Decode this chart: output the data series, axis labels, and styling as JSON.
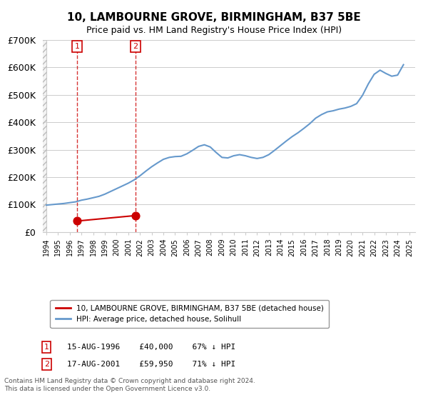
{
  "title": "10, LAMBOURNE GROVE, BIRMINGHAM, B37 5BE",
  "subtitle": "Price paid vs. HM Land Registry's House Price Index (HPI)",
  "legend_label_red": "10, LAMBOURNE GROVE, BIRMINGHAM, B37 5BE (detached house)",
  "legend_label_blue": "HPI: Average price, detached house, Solihull",
  "sale_dates": [
    "1996-08-15",
    "2001-08-17"
  ],
  "sale_years": [
    1996.625,
    2001.625
  ],
  "sale_prices": [
    40000,
    59950
  ],
  "sale_labels": [
    "1",
    "2"
  ],
  "sale_label_info": [
    "15-AUG-1996    £40,000    67% ↓ HPI",
    "17-AUG-2001    £59,950    71% ↓ HPI"
  ],
  "hpi_years": [
    1994.0,
    1994.5,
    1995.0,
    1995.5,
    1996.0,
    1996.5,
    1997.0,
    1997.5,
    1998.0,
    1998.5,
    1999.0,
    1999.5,
    2000.0,
    2000.5,
    2001.0,
    2001.5,
    2002.0,
    2002.5,
    2003.0,
    2003.5,
    2004.0,
    2004.5,
    2005.0,
    2005.5,
    2006.0,
    2006.5,
    2007.0,
    2007.5,
    2008.0,
    2008.5,
    2009.0,
    2009.5,
    2010.0,
    2010.5,
    2011.0,
    2011.5,
    2012.0,
    2012.5,
    2013.0,
    2013.5,
    2014.0,
    2014.5,
    2015.0,
    2015.5,
    2016.0,
    2016.5,
    2017.0,
    2017.5,
    2018.0,
    2018.5,
    2019.0,
    2019.5,
    2020.0,
    2020.5,
    2021.0,
    2021.5,
    2022.0,
    2022.5,
    2023.0,
    2023.5,
    2024.0,
    2024.5
  ],
  "hpi_values": [
    98000,
    100000,
    102000,
    104000,
    107000,
    110000,
    116000,
    120000,
    125000,
    130000,
    138000,
    148000,
    158000,
    168000,
    178000,
    190000,
    205000,
    222000,
    238000,
    252000,
    265000,
    272000,
    275000,
    276000,
    285000,
    298000,
    312000,
    318000,
    310000,
    290000,
    272000,
    270000,
    278000,
    282000,
    278000,
    272000,
    268000,
    272000,
    282000,
    298000,
    315000,
    332000,
    348000,
    362000,
    378000,
    395000,
    415000,
    428000,
    438000,
    442000,
    448000,
    452000,
    458000,
    468000,
    498000,
    540000,
    575000,
    590000,
    578000,
    568000,
    572000,
    610000
  ],
  "xmin": 1994.0,
  "xmax": 2025.5,
  "ymin": 0,
  "ymax": 700000,
  "hatch_xmax": 1994.0,
  "red_color": "#cc0000",
  "blue_color": "#6699cc",
  "hatch_color": "#cccccc",
  "background_color": "#ffffff",
  "footnote": "Contains HM Land Registry data © Crown copyright and database right 2024.\nThis data is licensed under the Open Government Licence v3.0."
}
